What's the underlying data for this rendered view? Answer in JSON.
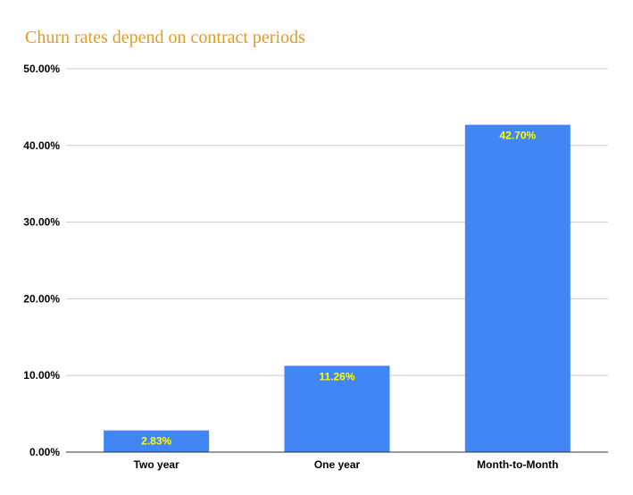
{
  "chart_data": {
    "type": "bar",
    "title": "Churn rates depend on contract periods",
    "xlabel": "",
    "ylabel": "",
    "categories": [
      "Two year",
      "One year",
      "Month-to-Month"
    ],
    "series": [
      {
        "values": [
          2.83,
          11.26,
          42.7
        ],
        "data_labels": [
          "2.83%",
          "11.26%",
          "42.70%"
        ]
      }
    ],
    "ylim": [
      0,
      50
    ],
    "yticks": [
      0,
      10,
      20,
      30,
      40,
      50
    ],
    "ytick_labels": [
      "0.00%",
      "10.00%",
      "20.00%",
      "30.00%",
      "40.00%",
      "50.00%"
    ],
    "grid": true,
    "legend": "none",
    "colors": {
      "bar": "#4285f4",
      "title": "#e69a1e",
      "data_label": "#ffff00",
      "grid": "#cccccc",
      "axis": "#333333"
    }
  }
}
